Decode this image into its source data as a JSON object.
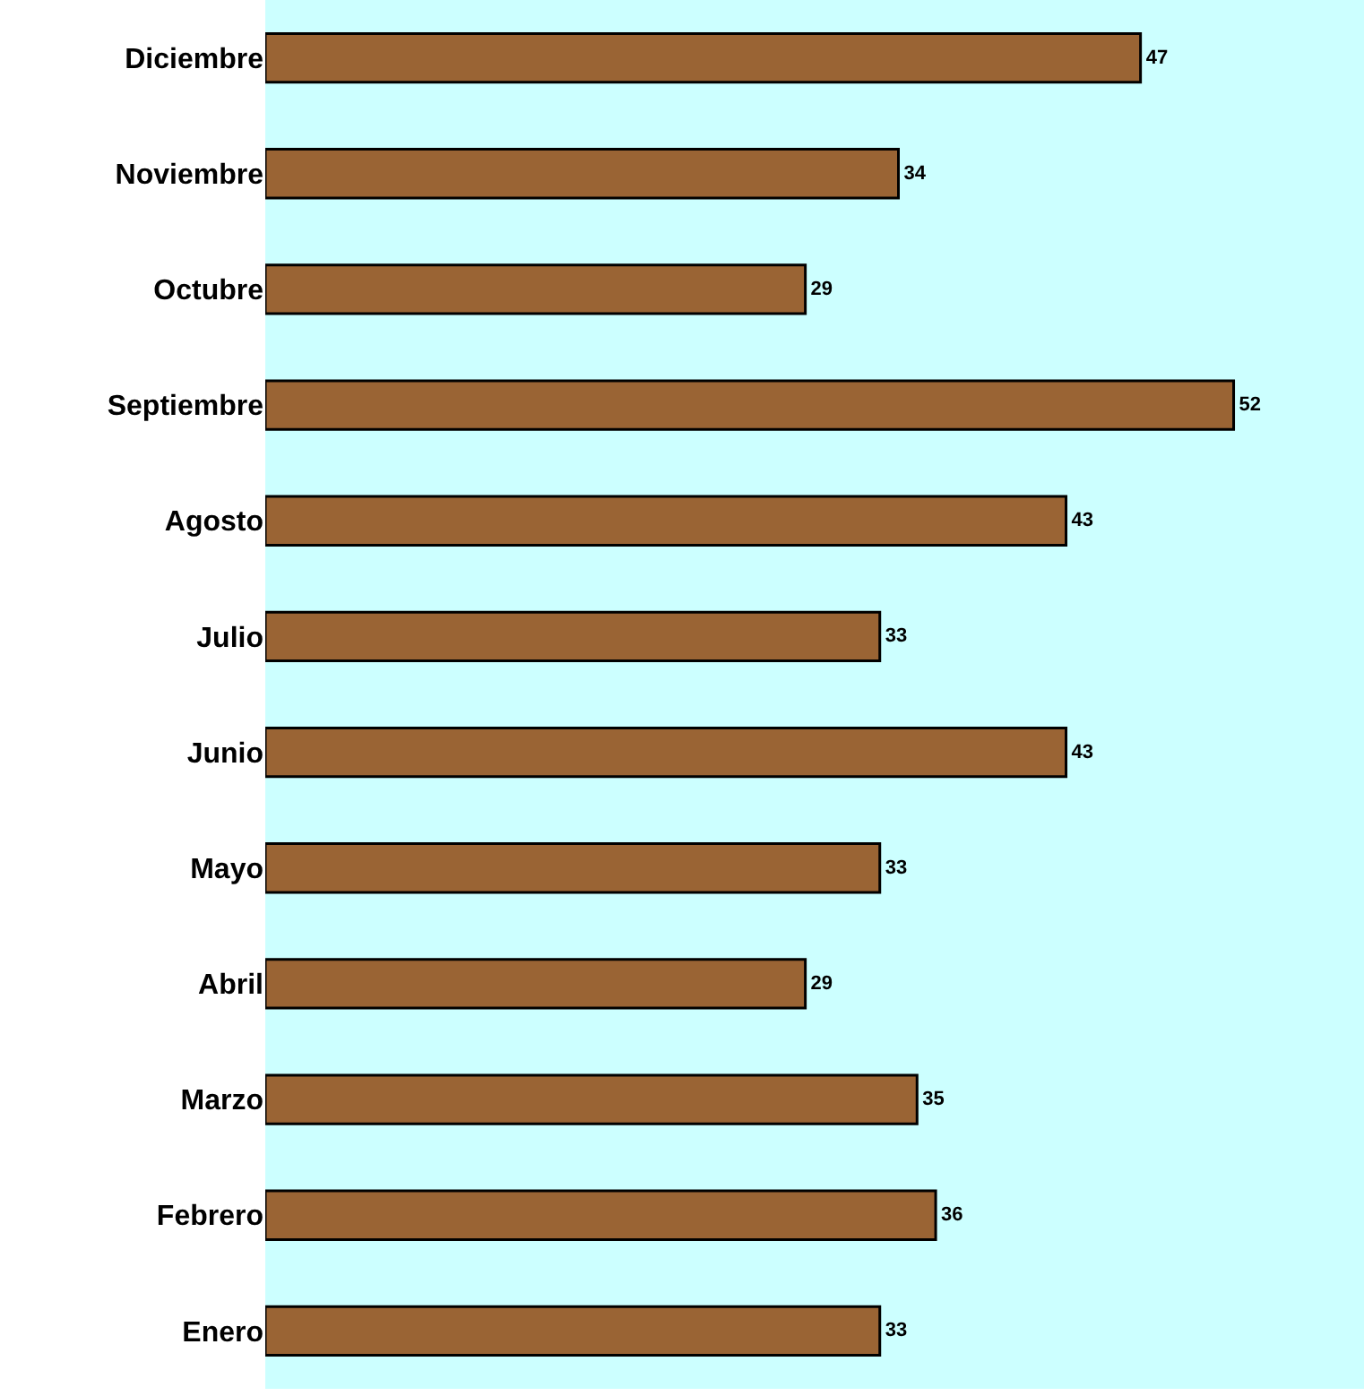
{
  "chart_data": {
    "type": "bar",
    "orientation": "horizontal",
    "categories": [
      "Diciembre",
      "Noviembre",
      "Octubre",
      "Septiembre",
      "Agosto",
      "Julio",
      "Junio",
      "Mayo",
      "Abril",
      "Marzo",
      "Febrero",
      "Enero"
    ],
    "values": [
      47,
      34,
      29,
      52,
      43,
      33,
      43,
      33,
      29,
      35,
      36,
      33
    ],
    "color": "#9a6434",
    "xlim": [
      0,
      59
    ],
    "data_labels": true,
    "grid": false,
    "legend": false,
    "tick_labels": "y"
  }
}
